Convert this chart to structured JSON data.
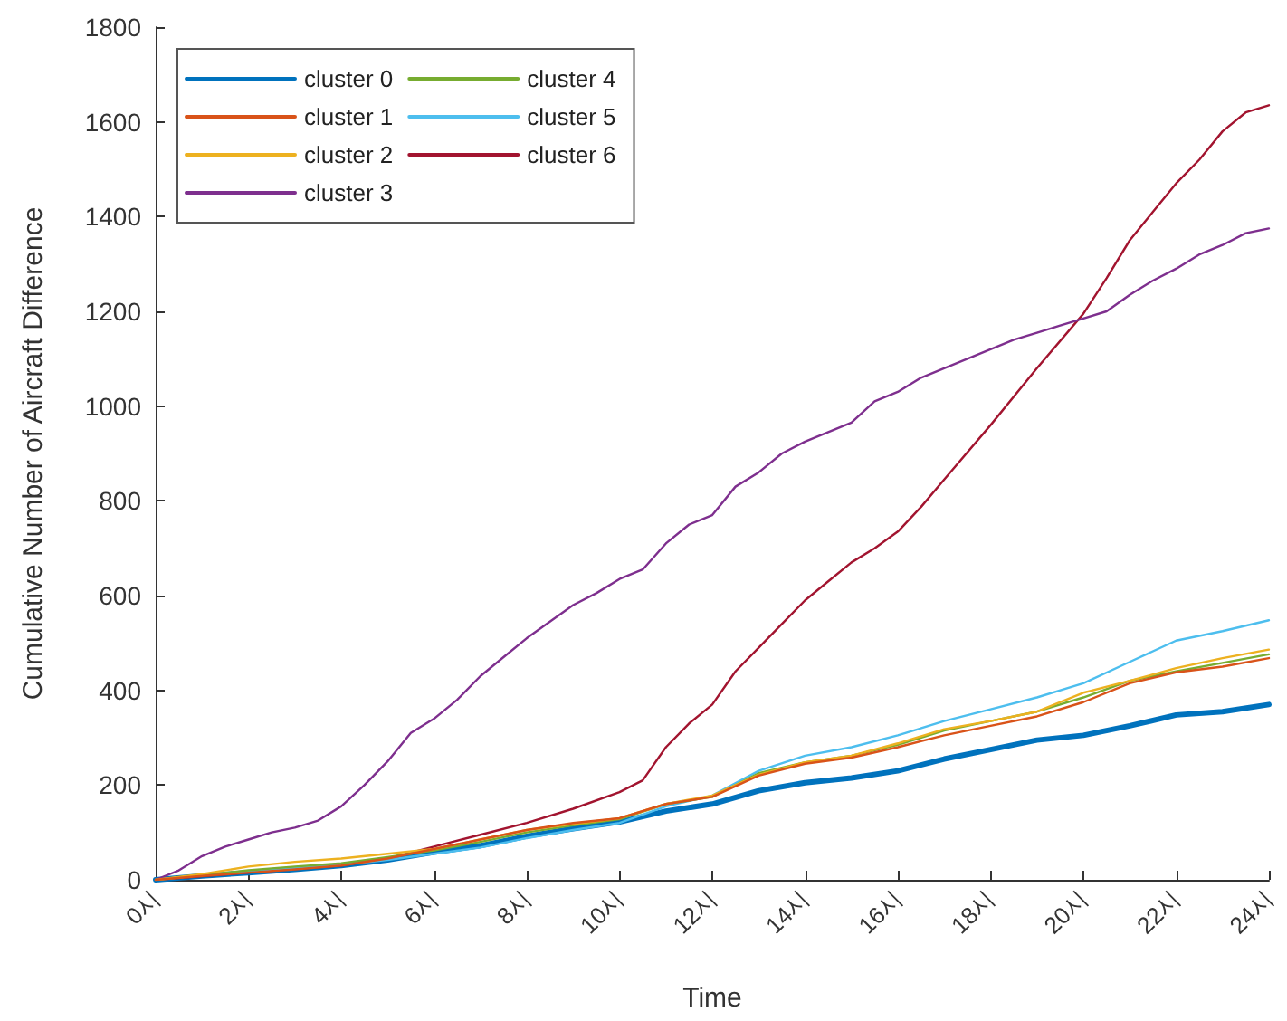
{
  "chart_data": {
    "type": "line",
    "xlabel": "Time",
    "ylabel": "Cumulative Number of Aircraft Difference",
    "x": [
      0,
      1,
      2,
      3,
      4,
      5,
      6,
      7,
      8,
      9,
      10,
      11,
      12,
      13,
      14,
      15,
      16,
      17,
      18,
      19,
      20,
      21,
      22,
      23,
      24
    ],
    "xlim": [
      0,
      24
    ],
    "xticks": [
      {
        "value": 0,
        "label": "0시"
      },
      {
        "value": 2,
        "label": "2시"
      },
      {
        "value": 4,
        "label": "4시"
      },
      {
        "value": 6,
        "label": "6시"
      },
      {
        "value": 8,
        "label": "8시"
      },
      {
        "value": 10,
        "label": "10시"
      },
      {
        "value": 12,
        "label": "12시"
      },
      {
        "value": 14,
        "label": "14시"
      },
      {
        "value": 16,
        "label": "16시"
      },
      {
        "value": 18,
        "label": "18시"
      },
      {
        "value": 20,
        "label": "20시"
      },
      {
        "value": 22,
        "label": "22시"
      },
      {
        "value": 24,
        "label": "24시"
      }
    ],
    "ylim": [
      0,
      1800
    ],
    "yticks": [
      0,
      200,
      400,
      600,
      800,
      1000,
      1200,
      1400,
      1600,
      1800
    ],
    "grid": false,
    "legend": "top left",
    "marker": "none",
    "line_style": "solid",
    "series": [
      {
        "name": "cluster 0",
        "color": "#0072bd",
        "values": [
          0,
          8,
          15,
          22,
          30,
          42,
          58,
          72,
          92,
          108,
          122,
          145,
          160,
          188,
          205,
          215,
          230,
          255,
          275,
          295,
          305,
          325,
          348,
          355,
          370
        ]
      },
      {
        "name": "cluster 1",
        "color": "#d95319",
        "values": [
          0,
          8,
          15,
          22,
          30,
          45,
          65,
          85,
          105,
          120,
          130,
          160,
          175,
          220,
          245,
          258,
          280,
          305,
          325,
          345,
          375,
          415,
          438,
          450,
          468
        ]
      },
      {
        "name": "cluster 2",
        "color": "#edb120",
        "values": [
          0,
          12,
          28,
          38,
          45,
          55,
          65,
          85,
          105,
          118,
          130,
          160,
          178,
          222,
          248,
          262,
          288,
          318,
          335,
          355,
          395,
          420,
          447,
          468,
          486
        ]
      },
      {
        "name": "cluster 3",
        "color": "#7e2f8e",
        "x": [
          0,
          0.5,
          1,
          1.5,
          2,
          2.5,
          3,
          3.5,
          4,
          4.5,
          5,
          5.5,
          6,
          6.5,
          7,
          7.5,
          8,
          8.5,
          9,
          9.5,
          10,
          10.5,
          11,
          11.5,
          12,
          12.5,
          13,
          13.5,
          14,
          14.5,
          15,
          15.5,
          16,
          16.5,
          17,
          17.5,
          18,
          18.5,
          19,
          19.5,
          20,
          20.5,
          21,
          21.5,
          22,
          22.5,
          23,
          23.5,
          24
        ],
        "values": [
          0,
          20,
          50,
          70,
          85,
          100,
          110,
          125,
          155,
          200,
          250,
          310,
          340,
          380,
          430,
          470,
          510,
          545,
          580,
          605,
          635,
          655,
          710,
          750,
          770,
          830,
          860,
          900,
          925,
          945,
          965,
          1010,
          1030,
          1060,
          1080,
          1100,
          1120,
          1140,
          1155,
          1170,
          1185,
          1200,
          1235,
          1265,
          1290,
          1320,
          1340,
          1365,
          1375
        ]
      },
      {
        "name": "cluster 4",
        "color": "#77ac30",
        "values": [
          0,
          10,
          20,
          28,
          35,
          48,
          62,
          80,
          100,
          115,
          128,
          160,
          175,
          225,
          248,
          262,
          285,
          315,
          335,
          355,
          385,
          420,
          440,
          458,
          476
        ]
      },
      {
        "name": "cluster 5",
        "color": "#4dbeee",
        "values": [
          0,
          10,
          18,
          25,
          32,
          42,
          55,
          68,
          88,
          105,
          120,
          155,
          178,
          230,
          262,
          280,
          305,
          335,
          360,
          385,
          415,
          460,
          505,
          525,
          548
        ]
      },
      {
        "name": "cluster 6",
        "color": "#a2142f",
        "x": [
          0,
          2,
          4,
          5,
          6,
          7,
          8,
          9,
          10,
          10.5,
          11,
          11.5,
          12,
          12.5,
          13,
          13.5,
          14,
          14.5,
          15,
          15.5,
          16,
          16.5,
          17,
          18,
          19,
          20,
          20.5,
          21,
          21.5,
          22,
          22.5,
          23,
          23.5,
          24
        ],
        "values": [
          0,
          15,
          30,
          45,
          70,
          95,
          120,
          150,
          185,
          210,
          280,
          330,
          370,
          440,
          490,
          540,
          590,
          630,
          670,
          700,
          735,
          787,
          845,
          960,
          1080,
          1195,
          1270,
          1350,
          1410,
          1470,
          1520,
          1580,
          1620,
          1635
        ]
      }
    ]
  }
}
